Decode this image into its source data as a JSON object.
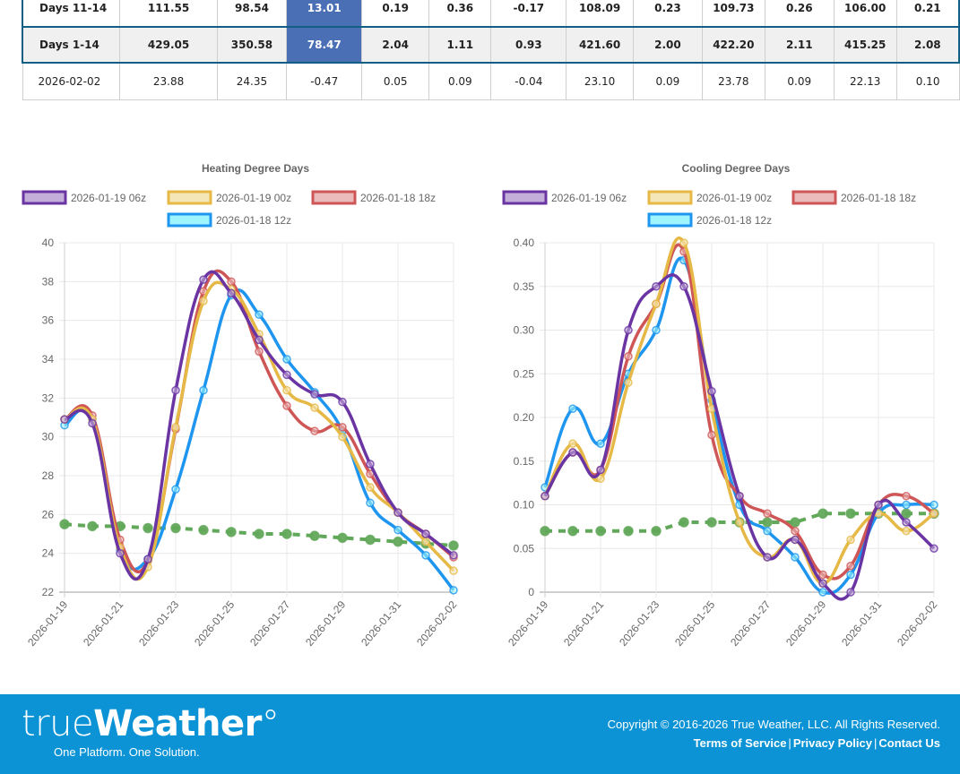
{
  "table": {
    "rows": [
      {
        "label": "Days 11-14",
        "cells": [
          "111.55",
          "98.54",
          "13.01",
          "0.19",
          "0.36",
          "-0.17",
          "108.09",
          "0.23",
          "109.73",
          "0.26",
          "106.00",
          "0.21"
        ]
      },
      {
        "label": "Days 1-14",
        "cells": [
          "429.05",
          "350.58",
          "78.47",
          "2.04",
          "1.11",
          "0.93",
          "421.60",
          "2.00",
          "422.20",
          "2.11",
          "415.25",
          "2.08"
        ]
      },
      {
        "label": "2026-02-02",
        "cells": [
          "23.88",
          "24.35",
          "-0.47",
          "0.05",
          "0.09",
          "-0.04",
          "23.10",
          "0.09",
          "23.78",
          "0.09",
          "22.13",
          "0.10"
        ]
      }
    ],
    "highlight_color": "#4a6fb4",
    "border_color": "#125f86"
  },
  "chart_data": [
    {
      "type": "line",
      "title": "Heating Degree Days",
      "x": [
        "2026-01-19",
        "2026-01-20",
        "2026-01-21",
        "2026-01-22",
        "2026-01-23",
        "2026-01-24",
        "2026-01-25",
        "2026-01-26",
        "2026-01-27",
        "2026-01-28",
        "2026-01-29",
        "2026-01-30",
        "2026-01-31",
        "2026-02-01",
        "2026-02-02"
      ],
      "xtick_labels": [
        "2026-01-19",
        "2026-01-21",
        "2026-01-23",
        "2026-01-25",
        "2026-01-27",
        "2026-01-29",
        "2026-01-31",
        "2026-02-02"
      ],
      "ylim": [
        22,
        40
      ],
      "yticks": [
        "22",
        "24",
        "26",
        "28",
        "30",
        "32",
        "34",
        "36",
        "38",
        "40"
      ],
      "grid": true,
      "legend": "top",
      "series": [
        {
          "name": "2026-01-19 06z",
          "color": "#6a34a3",
          "fill": "#c3aed9",
          "values": [
            30.9,
            30.7,
            24.0,
            23.7,
            32.4,
            38.1,
            37.4,
            35.0,
            33.2,
            32.2,
            31.8,
            28.6,
            26.1,
            25.0,
            23.9
          ]
        },
        {
          "name": "2026-01-19 00z",
          "color": "#e6b845",
          "fill": "#f5e6b8",
          "values": [
            30.9,
            30.9,
            24.3,
            23.3,
            30.5,
            37.0,
            37.6,
            35.3,
            32.4,
            31.5,
            30.0,
            27.4,
            26.1,
            24.6,
            23.1
          ]
        },
        {
          "name": "2026-01-18 18z",
          "color": "#cf5656",
          "fill": "#ebbbbb",
          "values": [
            30.9,
            31.1,
            24.7,
            23.6,
            30.4,
            37.5,
            38.0,
            34.4,
            31.6,
            30.3,
            30.5,
            28.1,
            26.1,
            25.0,
            23.8
          ]
        },
        {
          "name": "2026-01-18 12z",
          "color": "#1e95ee",
          "fill": "#9ff5ff",
          "values": [
            30.6,
            30.9,
            24.2,
            23.7,
            27.3,
            32.4,
            37.3,
            36.3,
            34.0,
            32.3,
            30.3,
            26.6,
            25.2,
            23.9,
            22.1
          ]
        },
        {
          "name": "Normal",
          "color": "#62a85a",
          "dashed": true,
          "legend": false,
          "values": [
            25.5,
            25.4,
            25.4,
            25.3,
            25.3,
            25.2,
            25.1,
            25.0,
            25.0,
            24.9,
            24.8,
            24.7,
            24.6,
            24.5,
            24.4
          ]
        }
      ]
    },
    {
      "type": "line",
      "title": "Cooling Degree Days",
      "x": [
        "2026-01-19",
        "2026-01-20",
        "2026-01-21",
        "2026-01-22",
        "2026-01-23",
        "2026-01-24",
        "2026-01-25",
        "2026-01-26",
        "2026-01-27",
        "2026-01-28",
        "2026-01-29",
        "2026-01-30",
        "2026-01-31",
        "2026-02-01",
        "2026-02-02"
      ],
      "xtick_labels": [
        "2026-01-19",
        "2026-01-21",
        "2026-01-23",
        "2026-01-25",
        "2026-01-27",
        "2026-01-29",
        "2026-01-31",
        "2026-02-02"
      ],
      "ylim": [
        0,
        0.4
      ],
      "yticks": [
        "0",
        "0.05",
        "0.10",
        "0.15",
        "0.20",
        "0.25",
        "0.30",
        "0.35",
        "0.40"
      ],
      "grid": true,
      "legend": "top",
      "series": [
        {
          "name": "2026-01-19 06z",
          "color": "#6a34a3",
          "fill": "#c3aed9",
          "values": [
            0.11,
            0.16,
            0.14,
            0.3,
            0.35,
            0.35,
            0.23,
            0.11,
            0.04,
            0.06,
            0.01,
            0.0,
            0.1,
            0.08,
            0.05
          ]
        },
        {
          "name": "2026-01-19 00z",
          "color": "#e6b845",
          "fill": "#f5e6b8",
          "values": [
            0.11,
            0.17,
            0.13,
            0.24,
            0.33,
            0.4,
            0.21,
            0.08,
            0.04,
            0.06,
            0.01,
            0.06,
            0.09,
            0.07,
            0.09
          ]
        },
        {
          "name": "2026-01-18 18z",
          "color": "#cf5656",
          "fill": "#ebbbbb",
          "values": [
            0.11,
            0.16,
            0.14,
            0.27,
            0.33,
            0.39,
            0.18,
            0.11,
            0.09,
            0.07,
            0.02,
            0.03,
            0.1,
            0.11,
            0.09
          ]
        },
        {
          "name": "2026-01-18 12z",
          "color": "#1e95ee",
          "fill": "#9ff5ff",
          "values": [
            0.12,
            0.21,
            0.17,
            0.25,
            0.3,
            0.38,
            0.22,
            0.1,
            0.07,
            0.04,
            0.0,
            0.02,
            0.09,
            0.1,
            0.1
          ]
        },
        {
          "name": "Normal",
          "color": "#62a85a",
          "dashed": true,
          "legend": false,
          "values": [
            0.07,
            0.07,
            0.07,
            0.07,
            0.07,
            0.08,
            0.08,
            0.08,
            0.08,
            0.08,
            0.09,
            0.09,
            0.09,
            0.09,
            0.09
          ]
        }
      ]
    }
  ],
  "footer": {
    "logo_light": "true",
    "logo_bold": "Weather",
    "logo_degree": "°",
    "tagline": "One Platform. One Solution.",
    "copyright": "Copyright © 2016-2026 True Weather, LLC. All Rights Reserved.",
    "links": [
      "Terms of Service",
      "Privacy Policy",
      "Contact Us"
    ],
    "separator": "|",
    "bg_color": "#0b93d5"
  }
}
